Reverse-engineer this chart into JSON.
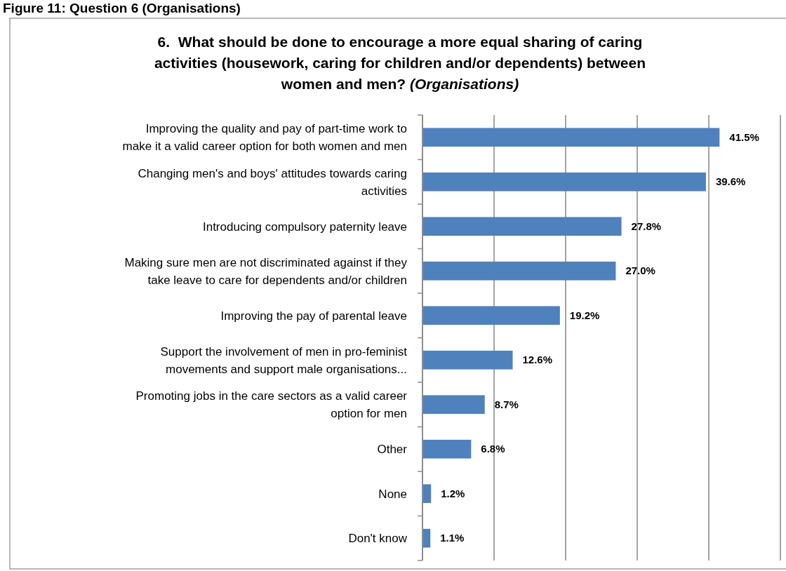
{
  "chart_data": {
    "type": "bar",
    "orientation": "horizontal",
    "title": "6.  What should be done to encourage a more equal sharing of caring activities (housework, caring for children and/or dependents) between women and men? (Organisations)",
    "annotations": [
      "Figure 11: Question 6 (Organisations)"
    ],
    "categories": [
      "Improving the quality and pay of part-time work to make it a valid career option for both women and men",
      "Changing men's and boys' attitudes towards caring activities",
      "Introducing compulsory paternity leave",
      "Making sure men are not discriminated against if they take leave to care for dependents and/or children",
      "Improving the pay of parental leave",
      "Support the involvement of men in pro-feminist movements and support male organisations...",
      "Promoting jobs in the care sectors as a valid career option for men",
      "Other",
      "None",
      "Don't know"
    ],
    "values": [
      41.5,
      39.6,
      27.8,
      27.0,
      19.2,
      12.6,
      8.7,
      6.8,
      1.2,
      1.1
    ],
    "value_labels": [
      "41.5%",
      "39.6%",
      "27.8%",
      "27.0%",
      "19.2%",
      "12.6%",
      "8.7%",
      "6.8%",
      "1.2%",
      "1.1%"
    ],
    "color": "#4f81bd",
    "xlim": [
      0,
      50
    ],
    "xticks": [
      {
        "value": 0,
        "label": null
      },
      {
        "value": 10,
        "label": null
      },
      {
        "value": 20,
        "label": null
      },
      {
        "value": 30,
        "label": null
      },
      {
        "value": 40,
        "label": null
      },
      {
        "value": 50,
        "label": null
      }
    ],
    "grid": "x",
    "tick_labels": "y"
  }
}
